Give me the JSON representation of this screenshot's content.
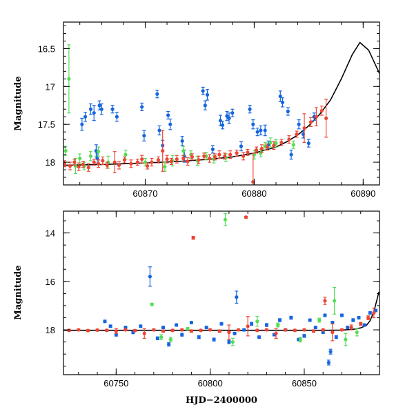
{
  "colors": {
    "blue": "#1565e0",
    "green": "#55dd55",
    "red": "#ee4433",
    "model": "#000000"
  },
  "chart_data": [
    {
      "type": "scatter",
      "panel": "top",
      "title": "",
      "xlabel": "",
      "ylabel": "Magnitude",
      "xlim": [
        60862.5,
        60891.5
      ],
      "ylim": [
        18.3,
        16.15
      ],
      "y_inverted": true,
      "xticks": [
        60870,
        60880,
        60890
      ],
      "xtick_labels": [
        "60870",
        "60880",
        "60890"
      ],
      "yticks": [
        16.5,
        17,
        17.5,
        18
      ],
      "ytick_labels": [
        "16.5",
        "17",
        "17.5",
        "18"
      ],
      "model_curve": {
        "x": [
          60862.5,
          60866,
          60870,
          60873,
          60876,
          60878,
          60880,
          60882,
          60883,
          60884,
          60885,
          60886,
          60887,
          60888,
          60889,
          60889.7,
          60890.5,
          60891.5
        ],
        "y": [
          18.04,
          18.03,
          18.01,
          17.99,
          17.96,
          17.93,
          17.88,
          17.8,
          17.73,
          17.64,
          17.52,
          17.37,
          17.18,
          16.9,
          16.58,
          16.42,
          16.52,
          16.83
        ]
      },
      "series": [
        {
          "color": "blue",
          "x": [
            60864.2,
            60864.5,
            60865.0,
            60865.3,
            60865.5,
            60865.6,
            60865.8,
            60866.0,
            60867.0,
            60867.4,
            60869.7,
            60869.9,
            60871.1,
            60871.3,
            60871.6,
            60872.1,
            60872.3,
            60873.4,
            60873.6,
            60875.3,
            60875.5,
            60875.7,
            60876.2,
            60876.9,
            60877.1,
            60877.5,
            60877.7,
            60878.0,
            60878.8,
            60879.6,
            60879.9,
            60880.3,
            60880.6,
            60881.0,
            60881.3,
            60882.4,
            60882.6,
            60883.1,
            60883.4,
            60884.1,
            60884.5,
            60885.0,
            60885.5
          ],
          "y": [
            17.5,
            17.4,
            17.3,
            17.35,
            17.85,
            17.95,
            17.25,
            17.3,
            17.3,
            17.4,
            17.27,
            17.65,
            17.1,
            17.58,
            17.78,
            17.38,
            17.5,
            17.72,
            17.92,
            17.06,
            17.25,
            17.11,
            17.83,
            17.45,
            17.51,
            17.39,
            17.42,
            17.35,
            17.79,
            17.3,
            17.5,
            17.6,
            17.58,
            17.58,
            17.77,
            17.13,
            17.21,
            17.33,
            17.9,
            17.5,
            17.63,
            17.75,
            17.4
          ],
          "err": [
            0.08,
            0.06,
            0.07,
            0.1,
            0.08,
            0.07,
            0.06,
            0.07,
            0.05,
            0.06,
            0.05,
            0.07,
            0.05,
            0.06,
            0.07,
            0.05,
            0.07,
            0.06,
            0.08,
            0.05,
            0.06,
            0.07,
            0.05,
            0.07,
            0.05,
            0.06,
            0.07,
            0.05,
            0.06,
            0.05,
            0.06,
            0.05,
            0.06,
            0.07,
            0.05,
            0.07,
            0.06,
            0.05,
            0.06,
            0.06,
            0.05,
            0.05,
            0.05
          ]
        },
        {
          "color": "green",
          "x": [
            60862.7,
            60863.0,
            60863.6,
            60864.0,
            60864.4,
            60865.0,
            60865.7,
            60866.6,
            60868.2,
            60870.0,
            60871.8,
            60872.5,
            60873.5,
            60874.2,
            60874.8,
            60875.6,
            60876.3,
            60877.4,
            60880.0,
            60880.6,
            60881.0,
            60881.5,
            60882.0,
            60883.6
          ],
          "y": [
            17.85,
            16.9,
            18.05,
            17.95,
            18.05,
            17.92,
            17.86,
            18.0,
            17.9,
            18.0,
            18.06,
            17.98,
            17.85,
            17.9,
            17.98,
            17.92,
            17.96,
            17.94,
            17.9,
            17.88,
            17.79,
            17.74,
            17.75,
            17.77
          ],
          "err": [
            0.06,
            0.45,
            0.1,
            0.06,
            0.05,
            0.06,
            0.06,
            0.08,
            0.06,
            0.05,
            0.06,
            0.07,
            0.06,
            0.05,
            0.06,
            0.05,
            0.05,
            0.05,
            0.06,
            0.05,
            0.05,
            0.06,
            0.05,
            0.05
          ]
        },
        {
          "color": "red",
          "x": [
            60862.6,
            60863.1,
            60863.5,
            60863.9,
            60864.3,
            60864.8,
            60865.3,
            60865.7,
            60866.1,
            60866.5,
            60867.2,
            60867.6,
            60868.1,
            60868.7,
            60869.3,
            60869.7,
            60870.2,
            60870.6,
            60871.2,
            60871.6,
            60872.0,
            60872.4,
            60872.9,
            60873.5,
            60873.9,
            60874.3,
            60874.9,
            60875.4,
            60875.9,
            60876.4,
            60876.8,
            60877.3,
            60877.8,
            60878.4,
            60879.0,
            60879.4,
            60879.9,
            60880.2,
            60880.7,
            60881.2,
            60881.8,
            60882.5,
            60883.2,
            60883.9,
            60884.6,
            60885.2,
            60885.7,
            60886.2,
            60886.6
          ],
          "y": [
            18.02,
            18.05,
            18.0,
            18.06,
            18.03,
            18.07,
            18.0,
            18.02,
            17.98,
            18.04,
            18.0,
            18.04,
            17.97,
            18.02,
            18.0,
            17.96,
            18.05,
            18.0,
            17.97,
            17.85,
            17.96,
            17.99,
            17.96,
            17.95,
            17.99,
            17.93,
            17.97,
            17.92,
            17.95,
            17.93,
            17.9,
            17.92,
            17.9,
            17.88,
            17.92,
            17.87,
            18.26,
            17.84,
            17.82,
            17.8,
            17.78,
            17.74,
            17.7,
            17.63,
            17.55,
            17.47,
            17.4,
            17.32,
            17.42
          ],
          "err": [
            0.04,
            0.05,
            0.04,
            0.05,
            0.04,
            0.05,
            0.04,
            0.05,
            0.05,
            0.04,
            0.14,
            0.05,
            0.04,
            0.05,
            0.04,
            0.05,
            0.04,
            0.05,
            0.04,
            0.27,
            0.05,
            0.04,
            0.05,
            0.04,
            0.05,
            0.04,
            0.05,
            0.04,
            0.05,
            0.04,
            0.05,
            0.04,
            0.05,
            0.04,
            0.05,
            0.04,
            0.38,
            0.04,
            0.05,
            0.04,
            0.05,
            0.04,
            0.05,
            0.04,
            0.19,
            0.06,
            0.12,
            0.06,
            0.25
          ]
        }
      ]
    },
    {
      "type": "scatter",
      "panel": "bottom",
      "title": "",
      "xlabel": "HJD−2400000",
      "ylabel": "Magnitude",
      "xlim": [
        60722,
        60890
      ],
      "ylim": [
        19.85,
        13.1
      ],
      "y_inverted": true,
      "xticks": [
        60750,
        60800,
        60850
      ],
      "xtick_labels": [
        "60750",
        "60800",
        "60850"
      ],
      "yticks": [
        14,
        16,
        18
      ],
      "ytick_labels": [
        "14",
        "16",
        "18"
      ],
      "model_curve": {
        "x": [
          60722,
          60760,
          60800,
          60840,
          60860,
          60870,
          60876,
          60880,
          60883,
          60885,
          60887,
          60888.5,
          60889.7,
          60890
        ],
        "y": [
          18.02,
          18.02,
          18.02,
          18.02,
          18.02,
          18.01,
          17.98,
          17.92,
          17.82,
          17.62,
          17.25,
          16.8,
          16.43,
          16.55
        ]
      },
      "series": [
        {
          "color": "blue",
          "x": [
            60744,
            60747,
            60750,
            60755,
            60759,
            60763,
            60768,
            60772,
            60775,
            60778,
            60782,
            60785,
            60790,
            60794,
            60798,
            60802,
            60806,
            60810,
            60813,
            60814,
            60818,
            60822,
            60826,
            60830,
            60834,
            60837,
            60840,
            60843,
            60847,
            60850,
            60853,
            60856,
            60860,
            60863,
            60865,
            60867,
            60870,
            60873,
            60876,
            60879,
            60882,
            60885,
            60888,
            60864,
            60861
          ],
          "y": [
            17.65,
            17.85,
            18.2,
            17.9,
            18.1,
            17.85,
            15.8,
            18.35,
            17.9,
            18.6,
            17.8,
            18.2,
            17.7,
            18.3,
            17.9,
            18.4,
            17.75,
            18.5,
            18.15,
            16.65,
            18.0,
            17.75,
            18.3,
            17.8,
            18.2,
            17.6,
            18.0,
            17.5,
            18.4,
            18.25,
            17.6,
            17.9,
            18.1,
            19.35,
            17.7,
            18.3,
            17.4,
            17.9,
            17.6,
            17.5,
            17.8,
            17.3,
            17.2,
            18.9,
            17.4
          ],
          "err": [
            0.05,
            0.05,
            0.06,
            0.05,
            0.06,
            0.05,
            0.4,
            0.06,
            0.05,
            0.07,
            0.05,
            0.06,
            0.05,
            0.06,
            0.05,
            0.06,
            0.05,
            0.07,
            0.05,
            0.25,
            0.05,
            0.06,
            0.05,
            0.06,
            0.05,
            0.06,
            0.05,
            0.06,
            0.05,
            0.06,
            0.05,
            0.05,
            0.05,
            0.1,
            0.05,
            0.06,
            0.05,
            0.05,
            0.06,
            0.05,
            0.05,
            0.05,
            0.05,
            0.1,
            0.05
          ]
        },
        {
          "color": "green",
          "x": [
            60769,
            60774,
            60779,
            60788,
            60808,
            60812,
            60825,
            60836,
            60848,
            60858,
            60866,
            60872,
            60878
          ],
          "y": [
            16.95,
            18.3,
            18.4,
            17.95,
            13.45,
            18.5,
            17.65,
            17.8,
            18.4,
            17.6,
            16.8,
            18.4,
            18.1
          ],
          "err": [
            0.05,
            0.1,
            0.1,
            0.05,
            0.25,
            0.15,
            0.2,
            0.08,
            0.1,
            0.08,
            0.55,
            0.25,
            0.15
          ]
        },
        {
          "color": "red",
          "x": [
            60725,
            60730,
            60735,
            60740,
            60745,
            60750,
            60755,
            60760,
            60765,
            60770,
            60775,
            60780,
            60785,
            60790,
            60795,
            60800,
            60805,
            60810,
            60815,
            60820,
            60825,
            60830,
            60835,
            60840,
            60845,
            60850,
            60855,
            60860,
            60865,
            60870,
            60875,
            60880,
            60884,
            60887,
            60791,
            60819,
            60861
          ],
          "y": [
            18.02,
            18.0,
            18.03,
            18.01,
            18.02,
            18.05,
            18.0,
            18.03,
            18.15,
            18.0,
            18.05,
            18.02,
            18.0,
            18.05,
            18.02,
            18.0,
            18.05,
            18.1,
            18.0,
            17.85,
            18.02,
            18.0,
            18.15,
            18.0,
            18.02,
            18.0,
            18.05,
            18.0,
            18.1,
            18.0,
            17.9,
            17.75,
            17.5,
            17.3,
            14.2,
            13.35,
            16.8
          ],
          "err": [
            0.04,
            0.04,
            0.04,
            0.04,
            0.04,
            0.1,
            0.04,
            0.04,
            0.2,
            0.04,
            0.04,
            0.04,
            0.04,
            0.05,
            0.04,
            0.04,
            0.05,
            0.3,
            0.04,
            0.4,
            0.04,
            0.04,
            0.2,
            0.04,
            0.04,
            0.04,
            0.05,
            0.04,
            0.35,
            0.04,
            0.1,
            0.06,
            0.08,
            0.2,
            0.06,
            0.04,
            0.15
          ]
        }
      ]
    }
  ]
}
